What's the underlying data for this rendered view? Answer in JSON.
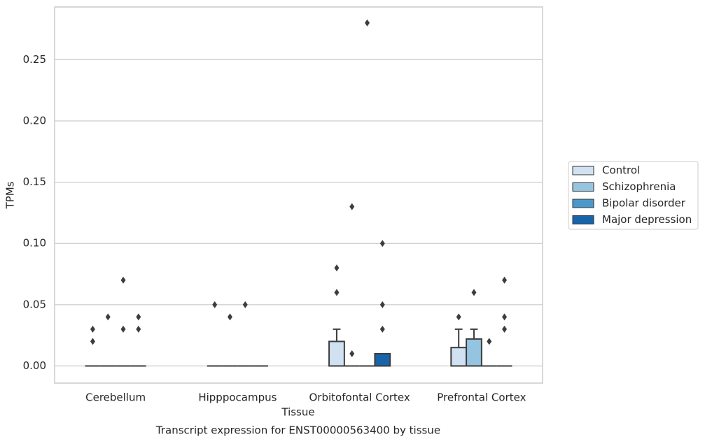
{
  "chart_data": {
    "type": "box",
    "title": "Transcript expression for ENST00000563400 by tissue",
    "x_label": "Tissue",
    "y_label": "TPMs",
    "categories": [
      "Cerebellum",
      "Hipppocampus",
      "Orbitofontal Cortex",
      "Prefrontal Cortex"
    ],
    "ylim": [
      -0.014,
      0.293
    ],
    "yticks": [
      {
        "value": 0,
        "label": "0.00"
      },
      {
        "value": 0.05,
        "label": "0.05"
      },
      {
        "value": 0.1,
        "label": "0.10"
      },
      {
        "value": 0.15,
        "label": "0.15"
      },
      {
        "value": 0.2,
        "label": "0.20"
      },
      {
        "value": 0.25,
        "label": "0.25"
      }
    ],
    "grid": true,
    "legend": "right",
    "series": [
      {
        "name": "Control",
        "color": "#d0e1f2",
        "boxes": [
          {
            "whislo": 0,
            "q1": 0,
            "med": 0,
            "q3": 0,
            "whishi": 0,
            "fliers": [
              0.03,
              0.02
            ]
          },
          {
            "whislo": 0,
            "q1": 0,
            "med": 0,
            "q3": 0,
            "whishi": 0,
            "fliers": [
              0.05
            ]
          },
          {
            "whislo": 0,
            "q1": 0,
            "med": 0,
            "q3": 0.02,
            "whishi": 0.03,
            "fliers": [
              0.08,
              0.06
            ]
          },
          {
            "whislo": 0,
            "q1": 0,
            "med": 0,
            "q3": 0.015,
            "whishi": 0.03,
            "fliers": [
              0.04
            ]
          }
        ]
      },
      {
        "name": "Schizophrenia",
        "color": "#94c4df",
        "boxes": [
          {
            "whislo": 0,
            "q1": 0,
            "med": 0,
            "q3": 0,
            "whishi": 0,
            "fliers": [
              0.04
            ]
          },
          {
            "whislo": 0,
            "q1": 0,
            "med": 0,
            "q3": 0,
            "whishi": 0,
            "fliers": [
              0.04
            ]
          },
          {
            "whislo": 0,
            "q1": 0,
            "med": 0,
            "q3": 0,
            "whishi": 0,
            "fliers": [
              0.13,
              0.01
            ]
          },
          {
            "whislo": 0,
            "q1": 0,
            "med": 0,
            "q3": 0.022,
            "whishi": 0.03,
            "fliers": [
              0.06
            ]
          }
        ]
      },
      {
        "name": "Bipolar disorder",
        "color": "#4a98c9",
        "boxes": [
          {
            "whislo": 0,
            "q1": 0,
            "med": 0,
            "q3": 0,
            "whishi": 0,
            "fliers": [
              0.07,
              0.03
            ]
          },
          {
            "whislo": 0,
            "q1": 0,
            "med": 0,
            "q3": 0,
            "whishi": 0,
            "fliers": [
              0.05
            ]
          },
          {
            "whislo": 0,
            "q1": 0,
            "med": 0,
            "q3": 0,
            "whishi": 0,
            "fliers": [
              0.28
            ]
          },
          {
            "whislo": 0,
            "q1": 0,
            "med": 0,
            "q3": 0,
            "whishi": 0,
            "fliers": [
              0.02
            ]
          }
        ]
      },
      {
        "name": "Major depression",
        "color": "#1764ab",
        "boxes": [
          {
            "whislo": 0,
            "q1": 0,
            "med": 0,
            "q3": 0,
            "whishi": 0,
            "fliers": [
              0.04,
              0.03
            ]
          },
          {
            "whislo": 0,
            "q1": 0,
            "med": 0,
            "q3": 0,
            "whishi": 0,
            "fliers": []
          },
          {
            "whislo": 0,
            "q1": 0,
            "med": 0,
            "q3": 0.01,
            "whishi": 0.01,
            "fliers": [
              0.1,
              0.05,
              0.03
            ]
          },
          {
            "whislo": 0,
            "q1": 0,
            "med": 0,
            "q3": 0,
            "whishi": 0,
            "fliers": [
              0.07,
              0.04,
              0.03
            ]
          }
        ]
      }
    ]
  }
}
